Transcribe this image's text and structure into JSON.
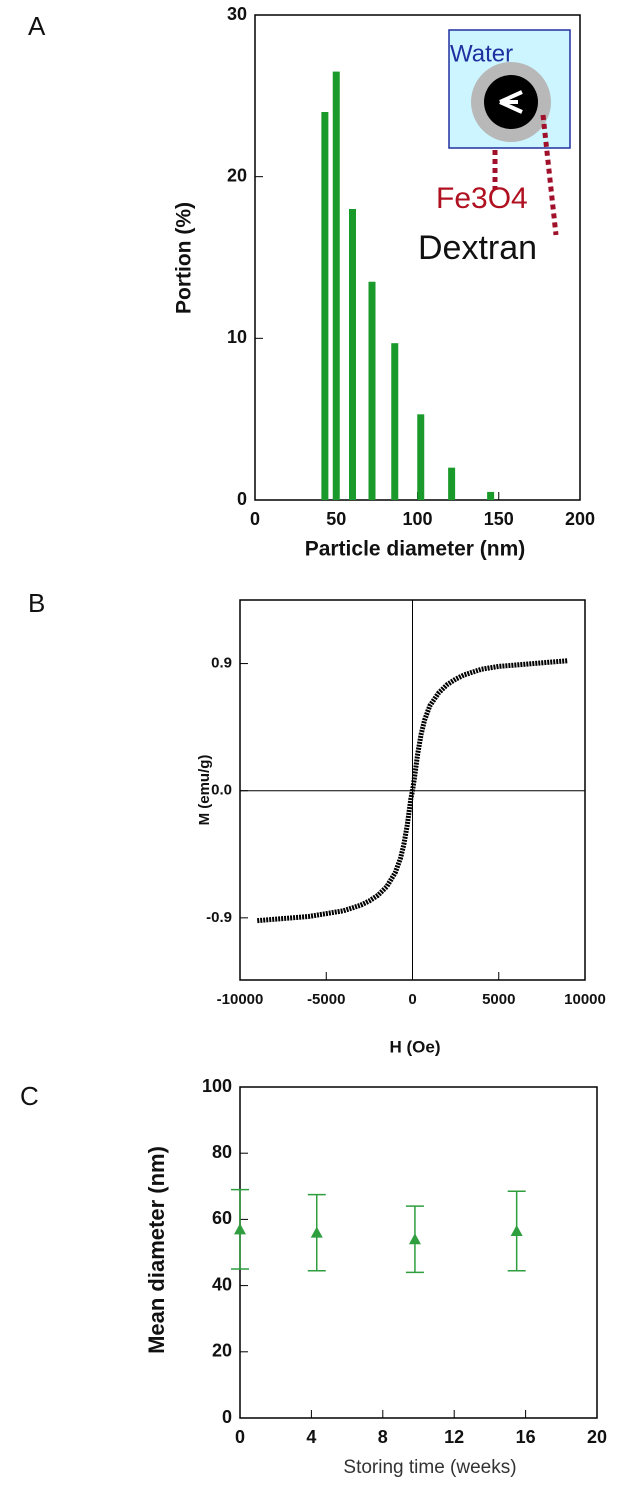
{
  "chart_data": [
    {
      "type": "bar",
      "panel_label": "A",
      "xlabel": "Particle diameter (nm)",
      "ylabel": "Portion (%)",
      "x": [
        43,
        50,
        60,
        72,
        86,
        102,
        121,
        145
      ],
      "values": [
        24,
        26.5,
        18,
        13.5,
        9.7,
        5.3,
        2,
        0.5
      ],
      "color": "#1a9a2a",
      "xlim": [
        0,
        200
      ],
      "xticks": [
        0,
        50,
        100,
        150,
        200
      ],
      "ylim": [
        0,
        30
      ],
      "yticks": [
        0,
        10,
        20,
        30
      ],
      "annotations": [
        "Water",
        "Fe3O4",
        "Dextran"
      ]
    },
    {
      "type": "line",
      "panel_label": "B",
      "xlabel": "H (Oe)",
      "ylabel": "M (emu/g)",
      "x": [
        -9000,
        -8000,
        -7000,
        -6000,
        -5000,
        -4000,
        -3000,
        -2500,
        -2000,
        -1500,
        -1000,
        -700,
        -500,
        -300,
        -200,
        -100,
        0,
        100,
        200,
        300,
        500,
        700,
        1000,
        1500,
        2000,
        2500,
        3000,
        4000,
        5000,
        6000,
        7000,
        8000,
        9000
      ],
      "values": [
        -0.92,
        -0.91,
        -0.9,
        -0.89,
        -0.87,
        -0.85,
        -0.81,
        -0.78,
        -0.74,
        -0.68,
        -0.58,
        -0.48,
        -0.38,
        -0.24,
        -0.15,
        -0.06,
        0,
        0.08,
        0.17,
        0.26,
        0.4,
        0.5,
        0.6,
        0.69,
        0.75,
        0.79,
        0.82,
        0.86,
        0.88,
        0.89,
        0.9,
        0.91,
        0.92
      ],
      "color": "#000000",
      "xlim": [
        -10000,
        10000
      ],
      "xticks": [
        -10000,
        -5000,
        0,
        5000,
        10000
      ],
      "ylim": [
        -1.34,
        1.35
      ],
      "yticks": [
        -0.9,
        {
          "value": 0,
          "label": "0.0"
        },
        0.9
      ]
    },
    {
      "type": "scatter",
      "panel_label": "C",
      "xlabel": "Storing time (weeks)",
      "ylabel": "Mean diameter (nm)",
      "x": [
        0,
        4.3,
        9.8,
        15.5
      ],
      "values": [
        57,
        56,
        54,
        56.5
      ],
      "errors": [
        12,
        11.5,
        10,
        12
      ],
      "color": "#2e9e3e",
      "xlim": [
        0,
        20
      ],
      "xticks": [
        0,
        4,
        8,
        12,
        16,
        20
      ],
      "ylim": [
        0,
        100
      ],
      "yticks": [
        0,
        20,
        40,
        60,
        80,
        100
      ]
    }
  ]
}
